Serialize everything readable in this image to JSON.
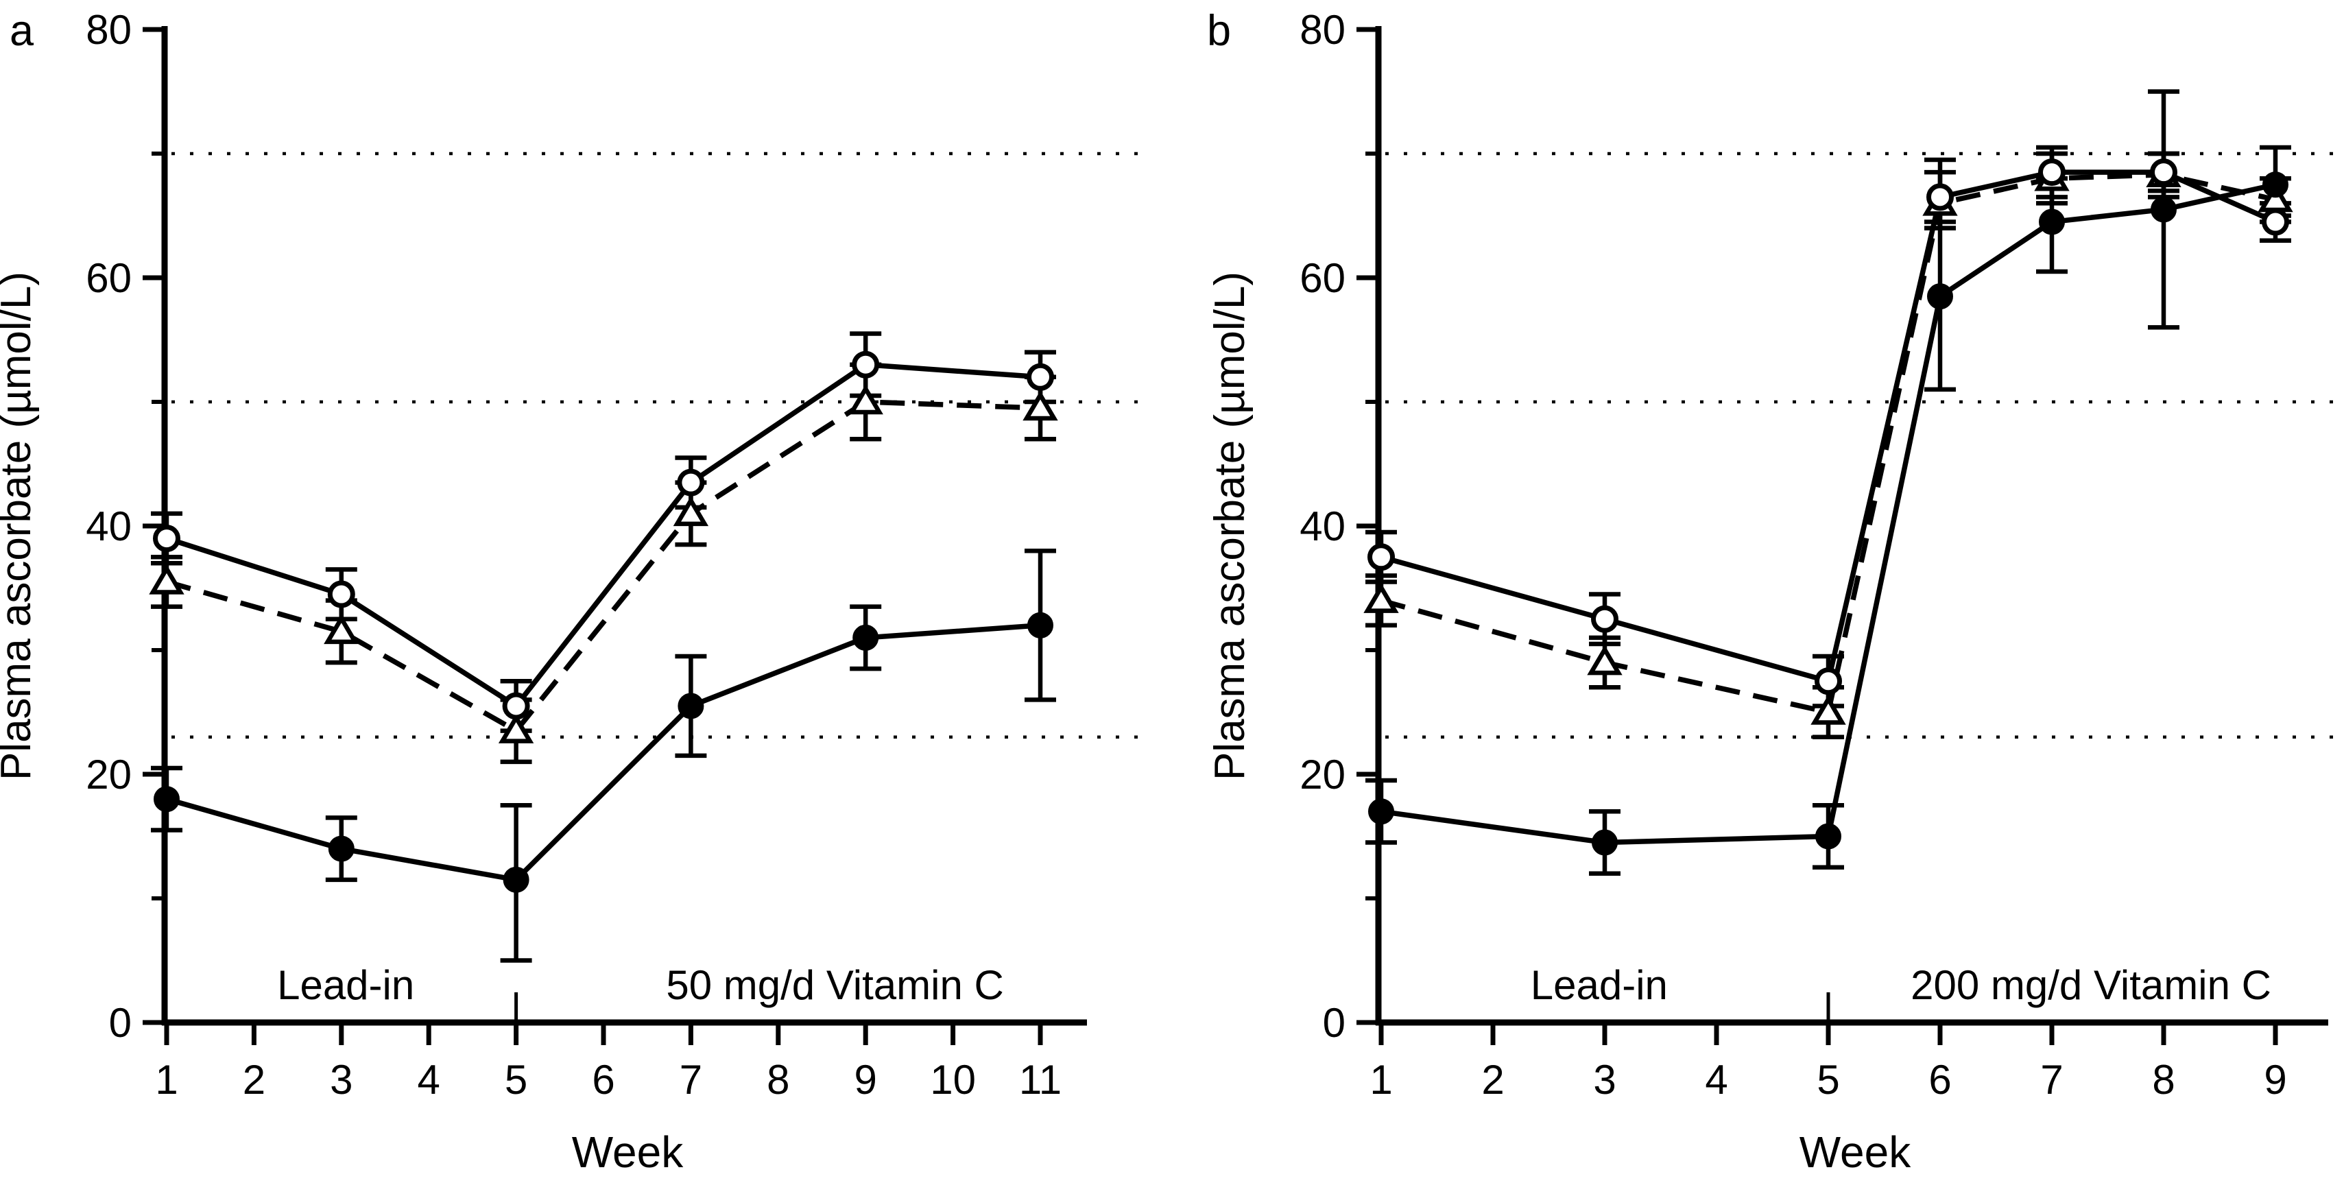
{
  "figure": {
    "background": "#ffffff",
    "ink_color": "#000000",
    "panels": [
      {
        "letter": "a"
      },
      {
        "letter": "b"
      }
    ]
  },
  "chart_data": [
    {
      "type": "line",
      "panel_letter": "a",
      "xlabel": "Week",
      "ylabel": "Plasma ascorbate (µmol/L)",
      "ylim": [
        0,
        80
      ],
      "y_ticks": [
        0,
        20,
        40,
        60,
        80
      ],
      "y_minor_ticks": [
        10,
        30,
        50,
        70
      ],
      "x_ticks": [
        1,
        2,
        3,
        4,
        5,
        6,
        7,
        8,
        9,
        10,
        11
      ],
      "reference_lines": [
        70,
        50,
        23
      ],
      "grid": "dotted horizontal reference lines only",
      "legend": "none (markers only)",
      "phase_divider_week": 5,
      "annotations": [
        {
          "label": "Lead-in",
          "center_week": 3.05
        },
        {
          "label": "50 mg/d Vitamin C",
          "center_week": 8.65
        }
      ],
      "x": [
        1,
        3,
        5,
        7,
        9,
        11
      ],
      "series": [
        {
          "name": "open-circle",
          "marker": "open-circle",
          "line_style": "solid",
          "values": [
            39,
            34.5,
            25.5,
            43.5,
            53,
            52
          ],
          "err_lower": [
            37,
            32.5,
            23.5,
            41.5,
            50.5,
            50
          ],
          "err_upper": [
            41,
            36.5,
            27.5,
            45.5,
            55.5,
            54
          ]
        },
        {
          "name": "open-triangle",
          "marker": "open-triangle",
          "line_style": "dashed",
          "values": [
            35.5,
            31.5,
            23.5,
            41,
            50,
            49.5
          ],
          "err_lower": [
            33.5,
            29,
            21,
            38.5,
            47,
            47
          ],
          "err_upper": [
            37.5,
            34,
            26,
            43.5,
            53,
            52
          ]
        },
        {
          "name": "filled-circle",
          "marker": "filled-circle",
          "line_style": "solid",
          "values": [
            18,
            14,
            11.5,
            25.5,
            31,
            32
          ],
          "err_lower": [
            15.5,
            11.5,
            5,
            21.5,
            28.5,
            26
          ],
          "err_upper": [
            20.5,
            16.5,
            17.5,
            29.5,
            33.5,
            38
          ]
        }
      ]
    },
    {
      "type": "line",
      "panel_letter": "b",
      "xlabel": "Week",
      "ylabel": "Plasma ascorbate (µmol/L)",
      "ylim": [
        0,
        80
      ],
      "y_ticks": [
        0,
        20,
        40,
        60,
        80
      ],
      "y_minor_ticks": [
        10,
        30,
        50,
        70
      ],
      "x_ticks": [
        1,
        2,
        3,
        4,
        5,
        6,
        7,
        8,
        9
      ],
      "reference_lines": [
        70,
        50,
        23
      ],
      "grid": "dotted horizontal reference lines only",
      "legend": "none (markers only)",
      "phase_divider_week": 5,
      "annotations": [
        {
          "label": "Lead-in",
          "center_week": 2.95
        },
        {
          "label": "200 mg/d Vitamin C",
          "center_week": 7.35
        }
      ],
      "x": [
        1,
        3,
        5,
        6,
        7,
        8,
        9
      ],
      "series": [
        {
          "name": "open-circle",
          "marker": "open-circle",
          "line_style": "solid",
          "values": [
            37.5,
            32.5,
            27.5,
            66.5,
            68.5,
            68.5,
            64.5
          ],
          "err_lower": [
            35.5,
            30.5,
            25.5,
            64,
            66.5,
            67,
            63
          ],
          "err_upper": [
            39.5,
            34.5,
            29.5,
            69.5,
            70.5,
            70,
            66
          ]
        },
        {
          "name": "open-triangle",
          "marker": "open-triangle",
          "line_style": "dashed",
          "values": [
            34,
            29,
            25,
            66,
            68,
            68.3,
            66.3
          ],
          "err_lower": [
            32,
            27,
            23,
            64,
            66,
            66.5,
            65
          ],
          "err_upper": [
            36,
            31,
            27,
            68.5,
            70,
            70,
            68
          ]
        },
        {
          "name": "filled-circle",
          "marker": "filled-circle",
          "line_style": "solid",
          "values": [
            17,
            14.5,
            15,
            58.5,
            64.5,
            65.5,
            67.5
          ],
          "err_lower": [
            14.5,
            12,
            12.5,
            51,
            60.5,
            56,
            64.5
          ],
          "err_upper": [
            19.5,
            17,
            17.5,
            64.5,
            68,
            75,
            70.5
          ]
        }
      ]
    }
  ]
}
